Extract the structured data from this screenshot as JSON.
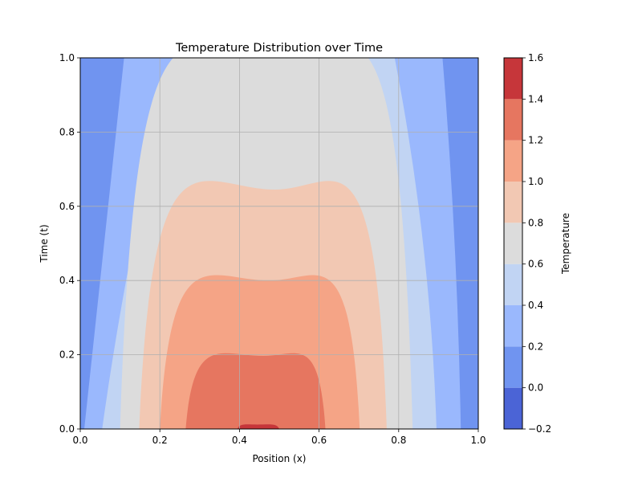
{
  "chart_data": {
    "type": "heatmap",
    "subtype": "filled-contour",
    "title": "Temperature Distribution over Time",
    "xlabel": "Position (x)",
    "ylabel": "Time (t)",
    "xlim": [
      0,
      1
    ],
    "ylim": [
      0,
      1
    ],
    "xticks": [
      "0.0",
      "0.2",
      "0.4",
      "0.6",
      "0.8",
      "1.0"
    ],
    "yticks": [
      "0.0",
      "0.2",
      "0.4",
      "0.6",
      "0.8",
      "1.0"
    ],
    "grid": true,
    "colorbar": {
      "label": "Temperature",
      "levels": [
        -0.2,
        0.0,
        0.2,
        0.4,
        0.6,
        0.8,
        1.0,
        1.2,
        1.4,
        1.6
      ],
      "ticks": [
        "−0.2",
        "0.0",
        "0.2",
        "0.4",
        "0.6",
        "0.8",
        "1.0",
        "1.2",
        "1.4",
        "1.6"
      ],
      "colors": [
        "#4b64d6",
        "#7094f0",
        "#9ab8fd",
        "#c1d4f3",
        "#dcdcdc",
        "#f2c8b3",
        "#f5a486",
        "#e67660",
        "#c6363a"
      ],
      "colormap": "coolwarm"
    },
    "series": [
      {
        "level": 0.2,
        "points": [
          {
            "x": 0.01,
            "t": 0.0
          },
          {
            "x": 0.05,
            "t": 0.4
          },
          {
            "x": 0.11,
            "t": 1.0
          },
          {
            "x": 0.91,
            "t": 1.0
          },
          {
            "x": 0.948,
            "t": 0.5
          },
          {
            "x": 0.956,
            "t": 0.0
          }
        ]
      },
      {
        "level": 0.4,
        "points": [
          {
            "x": 0.055,
            "t": 0.0
          },
          {
            "x": 0.12,
            "t": 0.5
          },
          {
            "x": 0.236,
            "t": 1.0
          },
          {
            "x": 0.79,
            "t": 1.0
          },
          {
            "x": 0.88,
            "t": 0.5
          },
          {
            "x": 0.895,
            "t": 0.0
          }
        ]
      },
      {
        "level": 0.6,
        "points": [
          {
            "x": 0.1,
            "t": 0.0
          },
          {
            "x": 0.5,
            "t": 1.0
          },
          {
            "x": 0.835,
            "t": 0.0
          }
        ]
      },
      {
        "level": 0.8,
        "points": [
          {
            "x": 0.148,
            "t": 0.0
          },
          {
            "x": 0.49,
            "t": 0.645
          },
          {
            "x": 0.77,
            "t": 0.0
          }
        ]
      },
      {
        "level": 1.0,
        "points": [
          {
            "x": 0.2,
            "t": 0.0
          },
          {
            "x": 0.475,
            "t": 0.4
          },
          {
            "x": 0.702,
            "t": 0.0
          }
        ]
      },
      {
        "level": 1.2,
        "points": [
          {
            "x": 0.265,
            "t": 0.0
          },
          {
            "x": 0.46,
            "t": 0.197
          },
          {
            "x": 0.616,
            "t": 0.0
          }
        ]
      },
      {
        "level": 1.4,
        "points": [
          {
            "x": 0.395,
            "t": 0.0
          },
          {
            "x": 0.445,
            "t": 0.012
          },
          {
            "x": 0.5,
            "t": 0.0
          }
        ]
      }
    ]
  }
}
